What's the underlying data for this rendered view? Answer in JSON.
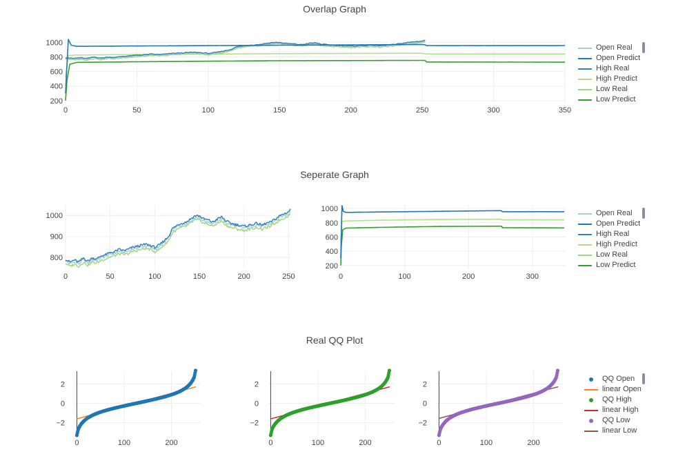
{
  "titles": {
    "overlap": "Overlap Graph",
    "separate": "Seperate Graph",
    "qq": "Real QQ Plot"
  },
  "legend_main": [
    {
      "label": "Open Real",
      "color": "#a6cee3",
      "kind": "line"
    },
    {
      "label": "Open Predict",
      "color": "#1f78b4",
      "kind": "line"
    },
    {
      "label": "High Real",
      "color": "#3b83b0",
      "kind": "line"
    },
    {
      "label": "High Predict",
      "color": "#b2df8a",
      "kind": "line"
    },
    {
      "label": "Low Real",
      "color": "#a3d67e",
      "kind": "line"
    },
    {
      "label": "Low Predict",
      "color": "#33a02c",
      "kind": "line"
    }
  ],
  "legend_qq": [
    {
      "label": "QQ Open",
      "color": "#1f77b4",
      "kind": "marker"
    },
    {
      "label": "linear Open",
      "color": "#ff7f0e",
      "kind": "line"
    },
    {
      "label": "QQ High",
      "color": "#2ca02c",
      "kind": "marker"
    },
    {
      "label": "linear High",
      "color": "#d62728",
      "kind": "line"
    },
    {
      "label": "QQ Low",
      "color": "#9467bd",
      "kind": "marker"
    },
    {
      "label": "linear Low",
      "color": "#8c564b",
      "kind": "line"
    }
  ],
  "chart_data": [
    {
      "id": "overlap",
      "type": "line",
      "title": "Overlap Graph",
      "xlim": [
        0,
        350
      ],
      "ylim": [
        170,
        1060
      ],
      "xticks": [
        0,
        50,
        100,
        150,
        200,
        250,
        300,
        350
      ],
      "yticks": [
        200,
        400,
        600,
        800,
        1000
      ],
      "real_anchors": [
        [
          0,
          785
        ],
        [
          5,
          770
        ],
        [
          10,
          780
        ],
        [
          15,
          770
        ],
        [
          20,
          790
        ],
        [
          25,
          775
        ],
        [
          30,
          790
        ],
        [
          35,
          785
        ],
        [
          40,
          800
        ],
        [
          45,
          805
        ],
        [
          50,
          815
        ],
        [
          55,
          820
        ],
        [
          60,
          830
        ],
        [
          65,
          825
        ],
        [
          70,
          830
        ],
        [
          75,
          840
        ],
        [
          80,
          845
        ],
        [
          85,
          850
        ],
        [
          90,
          855
        ],
        [
          95,
          850
        ],
        [
          100,
          840
        ],
        [
          105,
          850
        ],
        [
          110,
          870
        ],
        [
          115,
          890
        ],
        [
          120,
          930
        ],
        [
          125,
          945
        ],
        [
          130,
          955
        ],
        [
          135,
          960
        ],
        [
          140,
          975
        ],
        [
          145,
          990
        ],
        [
          150,
          990
        ],
        [
          155,
          975
        ],
        [
          160,
          970
        ],
        [
          165,
          960
        ],
        [
          170,
          975
        ],
        [
          175,
          985
        ],
        [
          180,
          965
        ],
        [
          185,
          955
        ],
        [
          190,
          950
        ],
        [
          195,
          945
        ],
        [
          200,
          940
        ],
        [
          205,
          945
        ],
        [
          210,
          950
        ],
        [
          215,
          955
        ],
        [
          220,
          945
        ],
        [
          225,
          955
        ],
        [
          230,
          960
        ],
        [
          235,
          975
        ],
        [
          240,
          990
        ],
        [
          245,
          1000
        ],
        [
          250,
          1010
        ],
        [
          252,
          1020
        ]
      ],
      "predict_anchors": {
        "open": [
          [
            0,
            300
          ],
          [
            1,
            700
          ],
          [
            2,
            1040
          ],
          [
            4,
            960
          ],
          [
            8,
            945
          ],
          [
            50,
            950
          ],
          [
            150,
            960
          ],
          [
            250,
            970
          ],
          [
            252,
            965
          ],
          [
            253,
            955
          ],
          [
            350,
            955
          ]
        ],
        "high": [
          [
            0,
            520
          ],
          [
            2,
            820
          ],
          [
            8,
            825
          ],
          [
            60,
            835
          ],
          [
            150,
            845
          ],
          [
            250,
            850
          ],
          [
            253,
            840
          ],
          [
            350,
            840
          ]
        ],
        "low": [
          [
            0,
            200
          ],
          [
            1,
            480
          ],
          [
            3,
            700
          ],
          [
            8,
            725
          ],
          [
            60,
            735
          ],
          [
            150,
            748
          ],
          [
            250,
            752
          ],
          [
            252,
            750
          ],
          [
            253,
            730
          ],
          [
            350,
            728
          ]
        ]
      },
      "series": [
        {
          "name": "Open Real",
          "color": "#a6cee3"
        },
        {
          "name": "Open Predict",
          "color": "#1f78b4"
        },
        {
          "name": "High Real",
          "color": "#3b83b0"
        },
        {
          "name": "High Predict",
          "color": "#b2df8a"
        },
        {
          "name": "Low Real",
          "color": "#a3d67e"
        },
        {
          "name": "Low Predict",
          "color": "#33a02c"
        }
      ]
    },
    {
      "id": "separate_real",
      "type": "line",
      "title": "Seperate Graph",
      "xlim": [
        0,
        252
      ],
      "ylim": [
        745,
        1050
      ],
      "xticks": [
        0,
        50,
        100,
        150,
        200,
        250
      ],
      "yticks": [
        800,
        900,
        1000
      ],
      "series": [
        {
          "name": "Open Real",
          "color": "#a6cee3"
        },
        {
          "name": "High Real",
          "color": "#3b83b0"
        },
        {
          "name": "Low Real",
          "color": "#a3d67e"
        }
      ]
    },
    {
      "id": "separate_predict",
      "type": "line",
      "xlim": [
        0,
        352
      ],
      "ylim": [
        150,
        1050
      ],
      "xticks": [
        0,
        100,
        200,
        300
      ],
      "yticks": [
        200,
        400,
        600,
        800,
        1000
      ],
      "series": [
        {
          "name": "Open Predict",
          "color": "#1f78b4"
        },
        {
          "name": "High Predict",
          "color": "#b2df8a"
        },
        {
          "name": "Low Predict",
          "color": "#33a02c"
        }
      ]
    },
    {
      "id": "qq_open",
      "type": "scatter",
      "title": "Real QQ Plot",
      "xlim": [
        -5,
        262
      ],
      "ylim": [
        -3.3,
        3.3
      ],
      "xticks": [
        0,
        100,
        200
      ],
      "yticks": [
        -2,
        0,
        2
      ],
      "n": 252,
      "series": [
        {
          "name": "QQ Open",
          "color": "#1f77b4"
        },
        {
          "name": "linear Open",
          "color": "#ff7f0e",
          "line": [
            [
              0,
              -1.6
            ],
            [
              252,
              1.7
            ]
          ]
        }
      ]
    },
    {
      "id": "qq_high",
      "type": "scatter",
      "xlim": [
        -5,
        262
      ],
      "ylim": [
        -3.3,
        3.3
      ],
      "xticks": [
        0,
        100,
        200
      ],
      "yticks": [
        -2,
        0,
        2
      ],
      "n": 252,
      "series": [
        {
          "name": "QQ High",
          "color": "#2ca02c"
        },
        {
          "name": "linear High",
          "color": "#d62728",
          "line": [
            [
              0,
              -1.6
            ],
            [
              252,
              1.7
            ]
          ]
        }
      ]
    },
    {
      "id": "qq_low",
      "type": "scatter",
      "xlim": [
        -5,
        262
      ],
      "ylim": [
        -3.3,
        3.3
      ],
      "xticks": [
        0,
        100,
        200
      ],
      "yticks": [
        -2,
        0,
        2
      ],
      "n": 252,
      "series": [
        {
          "name": "QQ Low",
          "color": "#9467bd"
        },
        {
          "name": "linear Low",
          "color": "#8c564b",
          "line": [
            [
              0,
              -1.55
            ],
            [
              252,
              1.7
            ]
          ]
        }
      ]
    }
  ]
}
